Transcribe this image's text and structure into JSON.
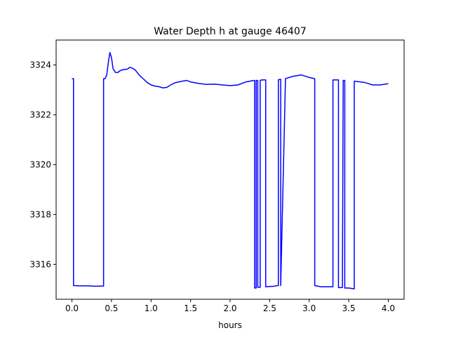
{
  "chart_data": {
    "type": "line",
    "title": "Water Depth h at gauge 46407",
    "xlabel": "hours",
    "ylabel": "",
    "xlim": [
      -0.2,
      4.2
    ],
    "ylim": [
      3314.6,
      3325.0
    ],
    "xticks": [
      0.0,
      0.5,
      1.0,
      1.5,
      2.0,
      2.5,
      3.0,
      3.5,
      4.0
    ],
    "xtick_labels": [
      "0.0",
      "0.5",
      "1.0",
      "1.5",
      "2.0",
      "2.5",
      "3.0",
      "3.5",
      "4.0"
    ],
    "yticks": [
      3316,
      3318,
      3320,
      3322,
      3324
    ],
    "ytick_labels": [
      "3316",
      "3318",
      "3320",
      "3322",
      "3324"
    ],
    "grid": false,
    "series": [
      {
        "name": "",
        "color": "#0000ff",
        "x": [
          0.0,
          0.02,
          0.02,
          0.1,
          0.2,
          0.3,
          0.35,
          0.4,
          0.4,
          0.42,
          0.44,
          0.46,
          0.48,
          0.5,
          0.52,
          0.55,
          0.58,
          0.6,
          0.63,
          0.66,
          0.7,
          0.73,
          0.76,
          0.8,
          0.85,
          0.9,
          0.95,
          1.0,
          1.05,
          1.1,
          1.15,
          1.2,
          1.25,
          1.3,
          1.35,
          1.4,
          1.45,
          1.5,
          1.6,
          1.7,
          1.8,
          1.9,
          2.0,
          2.1,
          2.2,
          2.3,
          2.31,
          2.31,
          2.33,
          2.33,
          2.34,
          2.35,
          2.35,
          2.38,
          2.38,
          2.4,
          2.42,
          2.43,
          2.45,
          2.45,
          2.55,
          2.6,
          2.61,
          2.61,
          2.63,
          2.64,
          2.64,
          2.7,
          2.8,
          2.9,
          3.0,
          3.07,
          3.07,
          3.15,
          3.3,
          3.3,
          3.37,
          3.37,
          3.42,
          3.43,
          3.44,
          3.45,
          3.45,
          3.5,
          3.57,
          3.57,
          3.7,
          3.8,
          3.9,
          4.0
        ],
        "y": [
          3323.45,
          3323.45,
          3315.15,
          3315.14,
          3315.14,
          3315.12,
          3315.13,
          3315.13,
          3323.45,
          3323.45,
          3323.6,
          3324.1,
          3324.5,
          3324.3,
          3323.85,
          3323.7,
          3323.7,
          3323.75,
          3323.8,
          3323.82,
          3323.83,
          3323.9,
          3323.88,
          3323.8,
          3323.6,
          3323.45,
          3323.3,
          3323.2,
          3323.15,
          3323.13,
          3323.08,
          3323.1,
          3323.2,
          3323.28,
          3323.32,
          3323.35,
          3323.38,
          3323.32,
          3323.26,
          3323.22,
          3323.23,
          3323.2,
          3323.17,
          3323.2,
          3323.32,
          3323.38,
          3323.38,
          3315.05,
          3315.05,
          3323.38,
          3323.38,
          3323.38,
          3315.08,
          3315.08,
          3323.38,
          3323.4,
          3323.4,
          3323.4,
          3323.4,
          3315.1,
          3315.12,
          3315.15,
          3315.15,
          3323.4,
          3323.42,
          3323.42,
          3315.15,
          3323.45,
          3323.55,
          3323.6,
          3323.5,
          3323.45,
          3315.15,
          3315.1,
          3315.1,
          3323.4,
          3323.4,
          3315.07,
          3315.07,
          3323.38,
          3323.38,
          3323.38,
          3315.05,
          3315.05,
          3315.02,
          3323.35,
          3323.3,
          3323.2,
          3323.2,
          3323.25
        ]
      }
    ]
  }
}
